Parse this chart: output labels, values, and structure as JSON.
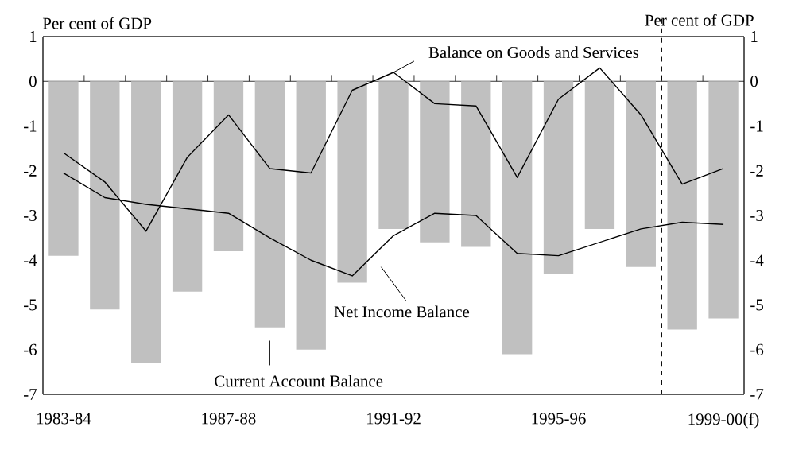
{
  "chart_data": {
    "type": "bar",
    "ylabel": "Per cent of GDP",
    "y2label": "Per cent of GDP",
    "categories": [
      "1983-84",
      null,
      null,
      null,
      "1987-88",
      null,
      null,
      null,
      "1991-92",
      null,
      null,
      null,
      "1995-96",
      null,
      null,
      null,
      "1999-00(f)"
    ],
    "series": [
      {
        "color": "#c0c0c0",
        "values": [
          -3.9,
          -5.1,
          -6.3,
          -4.7,
          -3.8,
          -5.5,
          -6.0,
          -4.5,
          -3.3,
          -3.6,
          -3.7,
          -6.1,
          -4.3,
          -3.3,
          -4.15,
          -5.55,
          -5.3
        ]
      },
      {
        "type": "line",
        "color": "#000000",
        "values": [
          -2.05,
          -2.6,
          -2.75,
          -2.85,
          -2.95,
          -3.5,
          -4.0,
          -4.35,
          -3.45,
          -2.95,
          -3.0,
          -3.85,
          -3.9,
          -3.6,
          -3.3,
          -3.15,
          -3.2
        ]
      },
      {
        "type": "line",
        "color": "#000000",
        "values": [
          -1.6,
          -2.25,
          -3.35,
          -1.7,
          -0.75,
          -1.95,
          -2.05,
          -0.2,
          0.2,
          -0.5,
          -0.55,
          -2.15,
          -0.4,
          0.3,
          -0.75,
          -2.3,
          -1.95
        ]
      }
    ],
    "ylim": [
      -7,
      1
    ],
    "yticks": [
      -7,
      -6,
      -5,
      -4,
      -3,
      -2,
      -1,
      0,
      1
    ],
    "y2lim": [
      -7,
      1
    ],
    "y2ticks": [
      -7,
      -6,
      -5,
      -4,
      -3,
      -2,
      -1,
      0,
      1
    ],
    "annotations": [
      "Current Account Balance",
      "Net Income Balance",
      {
        "text": "Balance on Goods and Services",
        "x": "1991-92",
        "y": 0.2
      }
    ],
    "legend": false,
    "grid": false
  }
}
